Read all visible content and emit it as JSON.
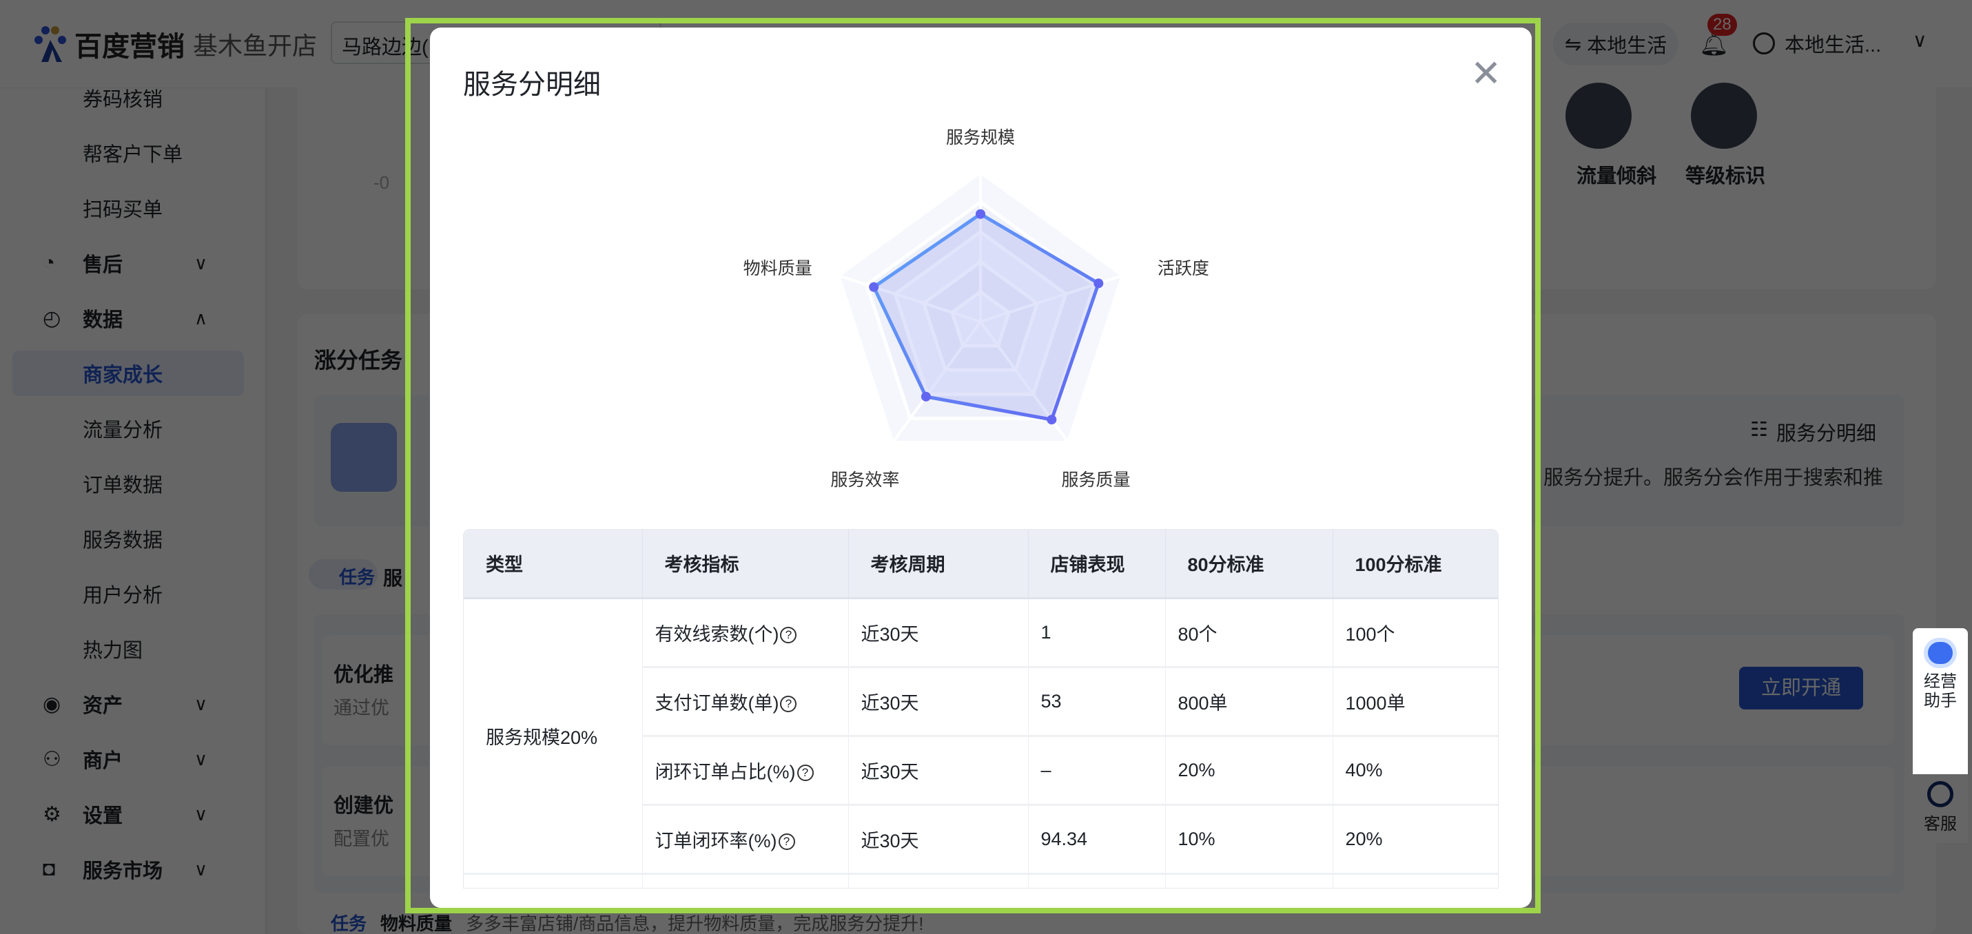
{
  "header": {
    "brand": "百度营销",
    "product": "基木鱼开店",
    "store_select": "马路边边(",
    "switch_label": "本地生活",
    "notification_count": "28",
    "user_name": "本地生活..."
  },
  "sidebar": {
    "items": [
      {
        "label": "券码核销",
        "icon": "",
        "level": "sub"
      },
      {
        "label": "帮客户下单",
        "icon": "",
        "level": "sub"
      },
      {
        "label": "扫码买单",
        "icon": "",
        "level": "sub"
      },
      {
        "label": "售后",
        "icon": "aftersale-check-icon",
        "level": "top",
        "expanded": false
      },
      {
        "label": "数据",
        "icon": "data-pie-icon",
        "level": "top",
        "expanded": true
      },
      {
        "label": "商家成长",
        "icon": "",
        "level": "sub",
        "selected": true
      },
      {
        "label": "流量分析",
        "icon": "",
        "level": "sub"
      },
      {
        "label": "订单数据",
        "icon": "",
        "level": "sub"
      },
      {
        "label": "服务数据",
        "icon": "",
        "level": "sub"
      },
      {
        "label": "用户分析",
        "icon": "",
        "level": "sub"
      },
      {
        "label": "热力图",
        "icon": "",
        "level": "sub"
      },
      {
        "label": "资产",
        "icon": "eye-icon",
        "level": "top",
        "expanded": false
      },
      {
        "label": "商户",
        "icon": "user-icon",
        "level": "top",
        "expanded": false
      },
      {
        "label": "设置",
        "icon": "gear-icon",
        "level": "top",
        "expanded": false
      },
      {
        "label": "服务市场",
        "icon": "bag-icon",
        "level": "top",
        "expanded": false
      }
    ]
  },
  "background": {
    "gauge_tick": "-0",
    "benefits": [
      "流量倾斜",
      "等级标识"
    ],
    "tasks_title": "涨分任务",
    "detail_link": "服务分明细",
    "desc_fragment": "服务分提升。服务分会作用于搜索和推",
    "task_tag": "任务",
    "task_name_fragment": "服",
    "task_rows": [
      {
        "title": "优化推",
        "desc": "通过优"
      },
      {
        "title": "创建优",
        "desc": "配置优"
      }
    ],
    "open_button": "立即开通",
    "bottom_task": {
      "tag": "任务",
      "name": "物料质量",
      "desc": "多多丰富店铺/商品信息，提升物料质量，完成服务分提升!"
    }
  },
  "float": {
    "assistant": "经营助手",
    "service": "客服"
  },
  "modal": {
    "title": "服务分明细",
    "close_icon": "close-icon"
  },
  "chart_data": {
    "type": "radar",
    "axes": [
      "服务规模",
      "活跃度",
      "服务质量",
      "服务效率",
      "物料质量"
    ],
    "values": [
      72,
      83,
      81,
      62,
      75
    ],
    "range": [
      0,
      100
    ],
    "rings": 5,
    "colors": {
      "line": "#6366f1",
      "line_start": "#60a5fa",
      "fill": "#8b93f0"
    }
  },
  "table": {
    "columns": [
      "类型",
      "考核指标",
      "考核周期",
      "店铺表现",
      "80分标准",
      "100分标准"
    ],
    "group": "服务规模20%",
    "rows": [
      {
        "metric": "有效线索数(个)",
        "period": "近30天",
        "value": "1",
        "std80": "80个",
        "std100": "100个"
      },
      {
        "metric": "支付订单数(单)",
        "period": "近30天",
        "value": "53",
        "std80": "800单",
        "std100": "1000单"
      },
      {
        "metric": "闭环订单占比(%)",
        "period": "近30天",
        "value": "–",
        "std80": "20%",
        "std100": "40%"
      },
      {
        "metric": "订单闭环率(%)",
        "period": "近30天",
        "value": "94.34",
        "std80": "10%",
        "std100": "20%"
      }
    ]
  },
  "colors": {
    "primary": "#2555cf",
    "highlight": "#9ed44a",
    "badge": "#e02020"
  }
}
